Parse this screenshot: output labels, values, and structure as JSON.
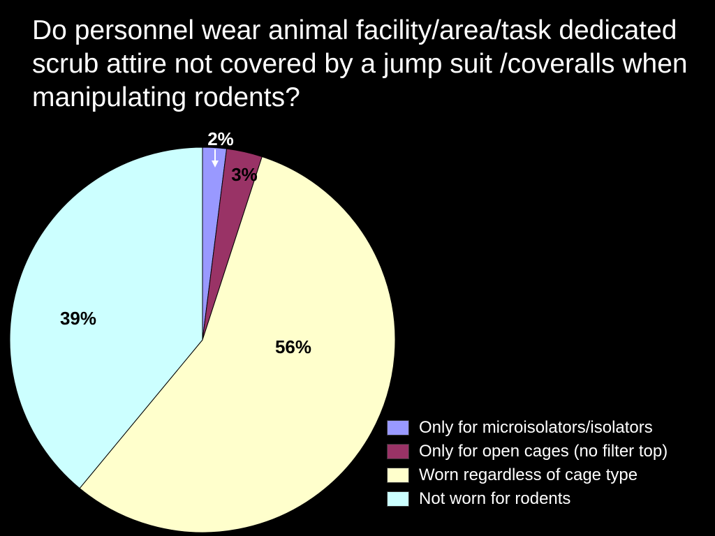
{
  "chart_data": {
    "type": "pie",
    "title": "Do personnel wear animal facility/area/task dedicated scrub attire not covered by a jump suit /coveralls when manipulating rodents?",
    "slices": [
      {
        "label": "Only for microisolators/isolators",
        "value": 2,
        "display": "2%",
        "color": "#9999ff"
      },
      {
        "label": "Only for open cages (no filter top)",
        "value": 3,
        "display": "3%",
        "color": "#993366"
      },
      {
        "label": "Worn regardless of cage type",
        "value": 56,
        "display": "56%",
        "color": "#ffffcc"
      },
      {
        "label": "Not worn for rodents",
        "value": 39,
        "display": "39%",
        "color": "#ccffff"
      }
    ],
    "legend_position": "bottom-right",
    "start_angle": "12 o'clock",
    "direction": "clockwise"
  },
  "colors": {
    "background": "#000000",
    "title_text": "#ffffff",
    "slice_outline": "#000000",
    "small_slice_label": "#000000",
    "callout_arrow": "#ffffff"
  }
}
